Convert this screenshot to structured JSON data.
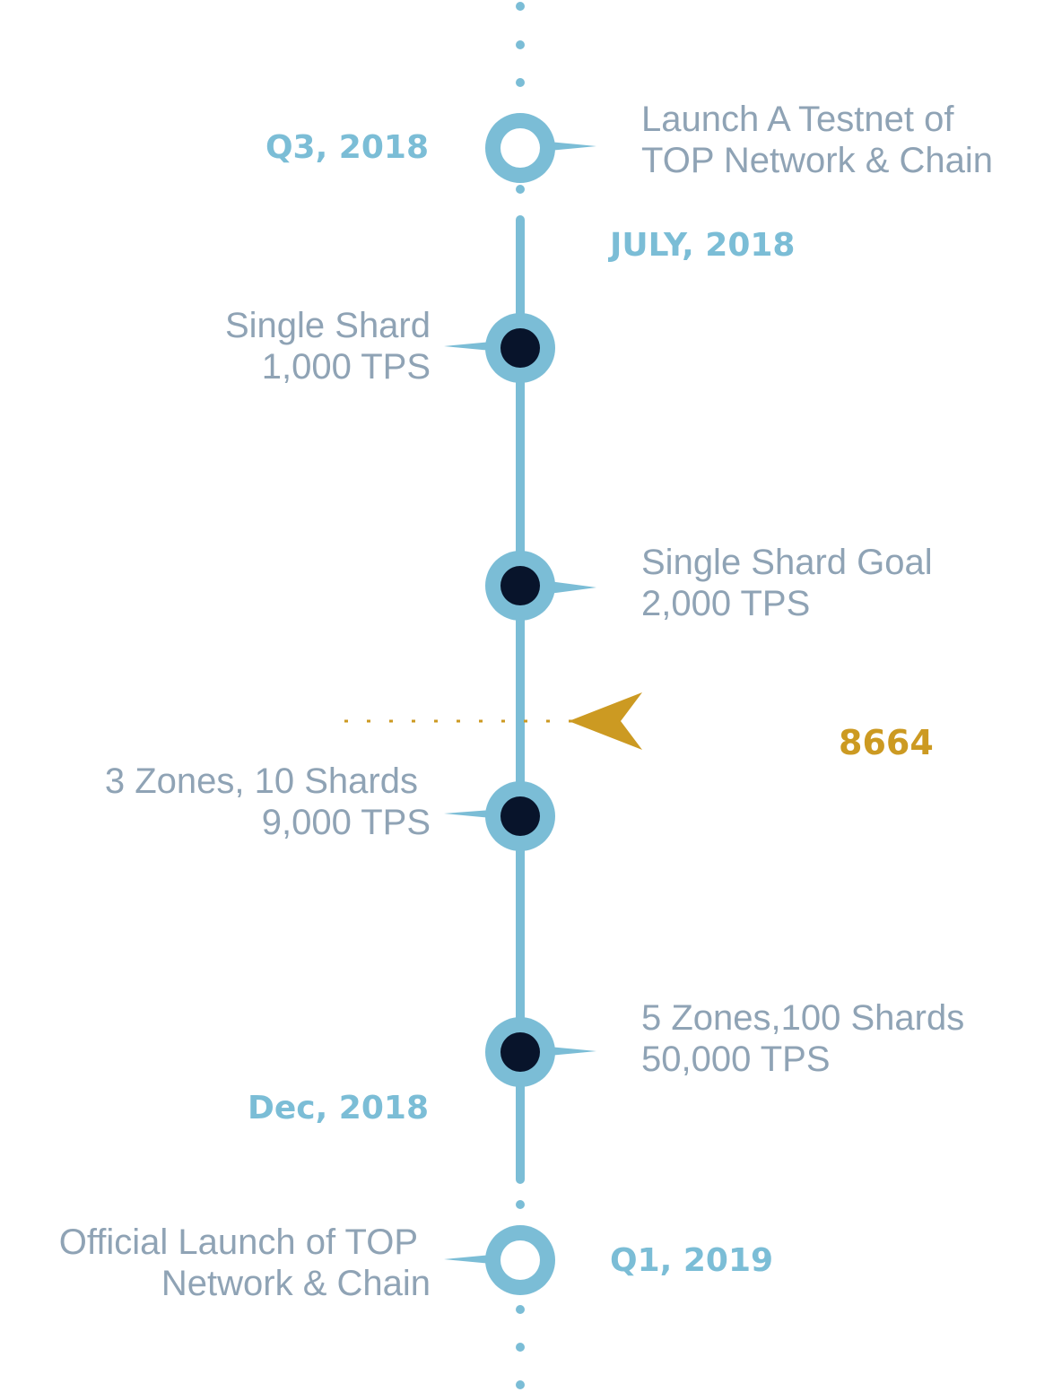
{
  "colors": {
    "axis": "#7bbdd6",
    "node_fill_dark": "#08142b",
    "node_fill_light": "#ffffff",
    "date_text": "#7bbdd6",
    "desc_text": "#8fa3b5",
    "marker": "#cc9a22"
  },
  "milestones": [
    {
      "id": "q3-2018",
      "date": "Q3, 2018",
      "desc": [
        "Launch A Testnet of",
        "TOP Network & Chain"
      ],
      "node": "hollow"
    },
    {
      "id": "july-2018",
      "date": "JULY, 2018"
    },
    {
      "id": "single-shard",
      "desc": [
        "Single Shard",
        "1,000 TPS"
      ],
      "node": "filled"
    },
    {
      "id": "single-shard-goal",
      "desc": [
        "Single Shard Goal",
        "2,000 TPS"
      ],
      "node": "filled"
    },
    {
      "id": "three-zones",
      "desc": [
        "3 Zones, 10 Shards",
        "9,000 TPS"
      ],
      "node": "filled"
    },
    {
      "id": "five-zones",
      "desc": [
        "5 Zones,100 Shards",
        "50,000 TPS"
      ],
      "node": "filled"
    },
    {
      "id": "dec-2018",
      "date": "Dec, 2018"
    },
    {
      "id": "q1-2019",
      "date": "Q1, 2019",
      "desc": [
        "Official Launch of TOP",
        "Network & Chain"
      ],
      "node": "hollow"
    }
  ],
  "current_marker": {
    "value": "8664",
    "icon": "arrow-pointer-icon"
  }
}
